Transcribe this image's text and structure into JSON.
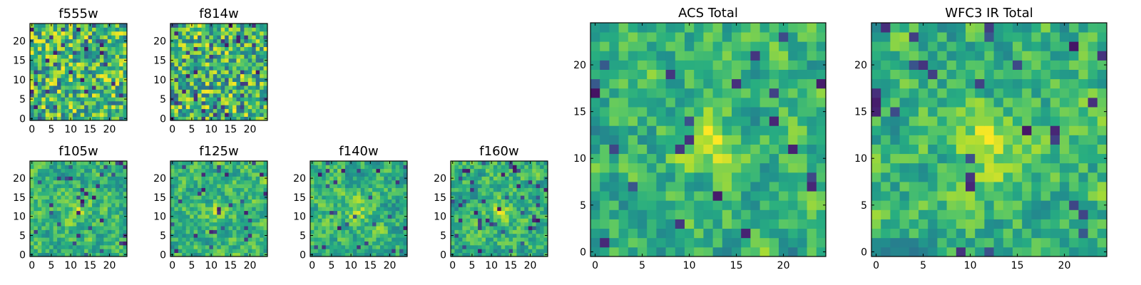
{
  "figure": {
    "colormap": "viridis",
    "axis_color": "#000000"
  },
  "chart_data": [
    {
      "type": "heatmap",
      "title": "f555w",
      "grid": [
        25,
        25
      ],
      "xlim": [
        -0.5,
        24.5
      ],
      "ylim": [
        -0.5,
        24.5
      ],
      "xticks": [
        {
          "value": 0,
          "label": "0"
        },
        {
          "value": 5,
          "label": "5"
        },
        {
          "value": 10,
          "label": "10"
        },
        {
          "value": 15,
          "label": "15"
        },
        {
          "value": 20,
          "label": "20"
        }
      ],
      "yticks": [
        {
          "value": 0,
          "label": "0"
        },
        {
          "value": 5,
          "label": "5"
        },
        {
          "value": 10,
          "label": "10"
        },
        {
          "value": 15,
          "label": "15"
        },
        {
          "value": 20,
          "label": "20"
        }
      ],
      "pattern": "noise",
      "seed": 11
    },
    {
      "type": "heatmap",
      "title": "f814w",
      "grid": [
        25,
        25
      ],
      "xlim": [
        -0.5,
        24.5
      ],
      "ylim": [
        -0.5,
        24.5
      ],
      "xticks": [
        {
          "value": 0,
          "label": "0"
        },
        {
          "value": 5,
          "label": "5"
        },
        {
          "value": 10,
          "label": "10"
        },
        {
          "value": 15,
          "label": "15"
        },
        {
          "value": 20,
          "label": "20"
        }
      ],
      "yticks": [
        {
          "value": 0,
          "label": "0"
        },
        {
          "value": 5,
          "label": "5"
        },
        {
          "value": 10,
          "label": "10"
        },
        {
          "value": 15,
          "label": "15"
        },
        {
          "value": 20,
          "label": "20"
        }
      ],
      "pattern": "noise",
      "seed": 23
    },
    {
      "type": "heatmap",
      "title": "f105w",
      "grid": [
        25,
        25
      ],
      "xlim": [
        -0.5,
        24.5
      ],
      "ylim": [
        -0.5,
        24.5
      ],
      "xticks": [
        {
          "value": 0,
          "label": "0"
        },
        {
          "value": 5,
          "label": "5"
        },
        {
          "value": 10,
          "label": "10"
        },
        {
          "value": 15,
          "label": "15"
        },
        {
          "value": 20,
          "label": "20"
        }
      ],
      "yticks": [
        {
          "value": 0,
          "label": "0"
        },
        {
          "value": 5,
          "label": "5"
        },
        {
          "value": 10,
          "label": "10"
        },
        {
          "value": 15,
          "label": "15"
        },
        {
          "value": 20,
          "label": "20"
        }
      ],
      "pattern": "smooth",
      "seed": 37
    },
    {
      "type": "heatmap",
      "title": "f125w",
      "grid": [
        25,
        25
      ],
      "xlim": [
        -0.5,
        24.5
      ],
      "ylim": [
        -0.5,
        24.5
      ],
      "xticks": [
        {
          "value": 0,
          "label": "0"
        },
        {
          "value": 5,
          "label": "5"
        },
        {
          "value": 10,
          "label": "10"
        },
        {
          "value": 15,
          "label": "15"
        },
        {
          "value": 20,
          "label": "20"
        }
      ],
      "yticks": [
        {
          "value": 0,
          "label": "0"
        },
        {
          "value": 5,
          "label": "5"
        },
        {
          "value": 10,
          "label": "10"
        },
        {
          "value": 15,
          "label": "15"
        },
        {
          "value": 20,
          "label": "20"
        }
      ],
      "pattern": "smooth",
      "seed": 41
    },
    {
      "type": "heatmap",
      "title": "f140w",
      "grid": [
        25,
        25
      ],
      "xlim": [
        -0.5,
        24.5
      ],
      "ylim": [
        -0.5,
        24.5
      ],
      "xticks": [
        {
          "value": 0,
          "label": "0"
        },
        {
          "value": 5,
          "label": "5"
        },
        {
          "value": 10,
          "label": "10"
        },
        {
          "value": 15,
          "label": "15"
        },
        {
          "value": 20,
          "label": "20"
        }
      ],
      "yticks": [
        {
          "value": 0,
          "label": "0"
        },
        {
          "value": 5,
          "label": "5"
        },
        {
          "value": 10,
          "label": "10"
        },
        {
          "value": 15,
          "label": "15"
        },
        {
          "value": 20,
          "label": "20"
        }
      ],
      "pattern": "smooth",
      "seed": 53
    },
    {
      "type": "heatmap",
      "title": "f160w",
      "grid": [
        25,
        25
      ],
      "xlim": [
        -0.5,
        24.5
      ],
      "ylim": [
        -0.5,
        24.5
      ],
      "xticks": [
        {
          "value": 0,
          "label": "0"
        },
        {
          "value": 5,
          "label": "5"
        },
        {
          "value": 10,
          "label": "10"
        },
        {
          "value": 15,
          "label": "15"
        },
        {
          "value": 20,
          "label": "20"
        }
      ],
      "yticks": [
        {
          "value": 0,
          "label": "0"
        },
        {
          "value": 5,
          "label": "5"
        },
        {
          "value": 10,
          "label": "10"
        },
        {
          "value": 15,
          "label": "15"
        },
        {
          "value": 20,
          "label": "20"
        }
      ],
      "pattern": "smooth",
      "seed": 67
    },
    {
      "type": "heatmap",
      "title": "ACS Total",
      "grid": [
        25,
        25
      ],
      "xlim": [
        -0.5,
        24.5
      ],
      "ylim": [
        -0.5,
        24.5
      ],
      "xticks": [
        {
          "value": 0,
          "label": "0"
        },
        {
          "value": 5,
          "label": "5"
        },
        {
          "value": 10,
          "label": "10"
        },
        {
          "value": 15,
          "label": "15"
        },
        {
          "value": 20,
          "label": "20"
        }
      ],
      "yticks": [
        {
          "value": 0,
          "label": "0"
        },
        {
          "value": 5,
          "label": "5"
        },
        {
          "value": 10,
          "label": "10"
        },
        {
          "value": 15,
          "label": "15"
        },
        {
          "value": 20,
          "label": "20"
        }
      ],
      "pattern": "blob",
      "seed": 79
    },
    {
      "type": "heatmap",
      "title": "WFC3 IR Total",
      "grid": [
        25,
        25
      ],
      "xlim": [
        -0.5,
        24.5
      ],
      "ylim": [
        -0.5,
        24.5
      ],
      "xticks": [
        {
          "value": 0,
          "label": "0"
        },
        {
          "value": 5,
          "label": "5"
        },
        {
          "value": 10,
          "label": "10"
        },
        {
          "value": 15,
          "label": "15"
        },
        {
          "value": 20,
          "label": "20"
        }
      ],
      "yticks": [
        {
          "value": 0,
          "label": "0"
        },
        {
          "value": 5,
          "label": "5"
        },
        {
          "value": 10,
          "label": "10"
        },
        {
          "value": 15,
          "label": "15"
        },
        {
          "value": 20,
          "label": "20"
        }
      ],
      "pattern": "blob",
      "seed": 97
    }
  ]
}
